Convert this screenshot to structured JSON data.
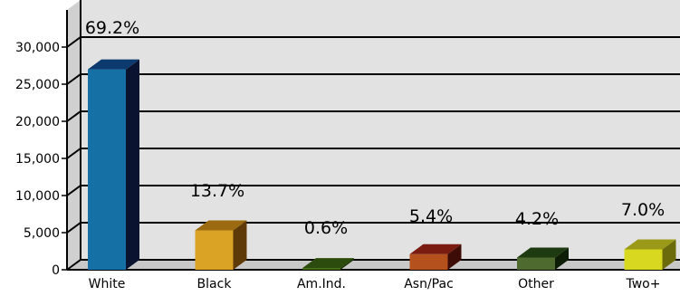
{
  "chart_data": {
    "type": "bar",
    "title": "",
    "xlabel": "",
    "ylabel": "",
    "ylim": [
      0,
      35000
    ],
    "yticks": [
      "0",
      "5,000",
      "10,000",
      "15,000",
      "20,000",
      "25,000",
      "30,000"
    ],
    "ytick_values": [
      0,
      5000,
      10000,
      15000,
      20000,
      25000,
      30000
    ],
    "grid": true,
    "categories": [
      "White",
      "Black",
      "Am.Ind.",
      "Asn/Pac",
      "Other",
      "Two+"
    ],
    "values": [
      27000,
      5300,
      230,
      2100,
      1650,
      2750
    ],
    "labels": [
      "69.2%",
      "13.7%",
      "0.6%",
      "5.4%",
      "4.2%",
      "7.0%"
    ],
    "colors": [
      {
        "front": "#1570a6",
        "top": "#0d3a6e",
        "side": "#0a1430"
      },
      {
        "front": "#dba326",
        "top": "#9c6a10",
        "side": "#5e3a08"
      },
      {
        "front": "#3e6b10",
        "top": "#2b4c0c",
        "side": "#1c3306"
      },
      {
        "front": "#b5511c",
        "top": "#7a1c10",
        "side": "#3e0c06"
      },
      {
        "front": "#4e6a2e",
        "top": "#1d3a10",
        "side": "#0e1e06"
      },
      {
        "front": "#d8d820",
        "top": "#9a9a18",
        "side": "#6b6b0c"
      }
    ]
  }
}
